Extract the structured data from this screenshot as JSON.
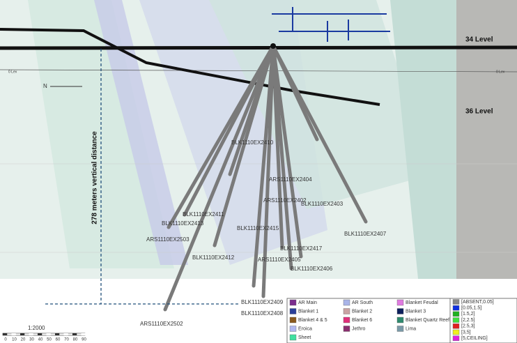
{
  "levels": [
    "34 Level",
    "36 Level"
  ],
  "level_marker": "0 Lev",
  "north": "N",
  "annotation": "278 meters vertical distance",
  "holes": [
    "BLK1110EX2410",
    "ARS1110EX2404",
    "ARS1110EX2402",
    "BLK1110EX2403",
    "BLK1110EX2411",
    "BLK1110EX2413",
    "BLK1110EX2415",
    "ARS1110EX2503",
    "BLK1110EX2407",
    "BLK1110EX2417",
    "BLK1110EX2412",
    "ARS1110EX2405",
    "BLK1110EX2406",
    "BLK1110EX2409",
    "BLK1110EX2408",
    "ARS1110EX2502"
  ],
  "legend": {
    "domains": [
      {
        "name": "AR Main",
        "color": "#7b2d8e"
      },
      {
        "name": "AR South",
        "color": "#a9b4e8"
      },
      {
        "name": "Blanket Feudal",
        "color": "#e07be0"
      },
      {
        "name": "Blanket 1",
        "color": "#2a3f9a"
      },
      {
        "name": "Blanket 2",
        "color": "#c9a3a3"
      },
      {
        "name": "Blanket 3",
        "color": "#0d1f5c"
      },
      {
        "name": "Blanket 4 & 5",
        "color": "#8a5a1e"
      },
      {
        "name": "Blanket 6",
        "color": "#e0307a"
      },
      {
        "name": "Blanket Quartz Reef",
        "color": "#2f8a6e"
      },
      {
        "name": "Eroica",
        "color": "#b0b8f0"
      },
      {
        "name": "Jethro",
        "color": "#8a2e6e"
      },
      {
        "name": "Lima",
        "color": "#7a9aa8"
      },
      {
        "name": "Sheet",
        "color": "#40e0a0"
      }
    ],
    "grades": [
      {
        "name": "[ABSENT,0.05]",
        "color": "#888888"
      },
      {
        "name": "[0.05,1.5]",
        "color": "#1030e0"
      },
      {
        "name": "[1.5,2]",
        "color": "#20b020"
      },
      {
        "name": "[2,2.5]",
        "color": "#40e040"
      },
      {
        "name": "[2.5,3]",
        "color": "#e02020"
      },
      {
        "name": "[3,5]",
        "color": "#f0f020"
      },
      {
        "name": "[5,CEILING]",
        "color": "#e020e0"
      }
    ]
  },
  "scale": {
    "title": "1:2000",
    "ticks": [
      "0",
      "10",
      "20",
      "30",
      "40",
      "50",
      "60",
      "70",
      "80",
      "90"
    ]
  }
}
